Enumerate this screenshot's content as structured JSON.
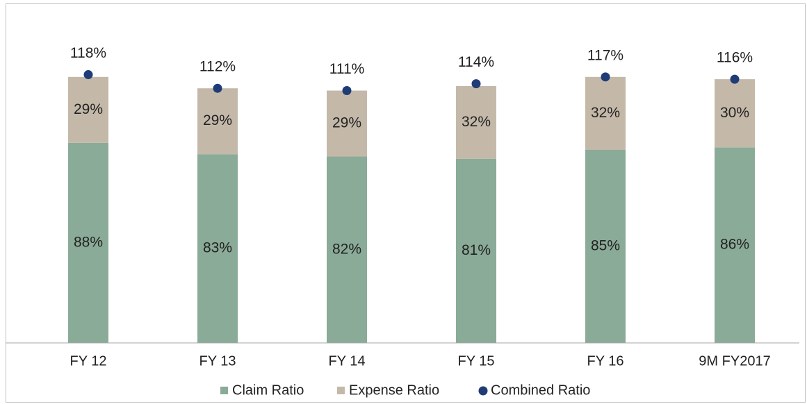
{
  "chart_data": {
    "type": "bar",
    "categories": [
      "FY 12",
      "FY 13",
      "FY 14",
      "FY 15",
      "FY 16",
      "9M FY2017"
    ],
    "stacked": true,
    "series": [
      {
        "name": "Claim Ratio",
        "color": "#8aab97",
        "values": [
          88,
          83,
          82,
          81,
          85,
          86
        ],
        "value_labels": [
          "88%",
          "83%",
          "82%",
          "81%",
          "85%",
          "86%"
        ]
      },
      {
        "name": "Expense Ratio",
        "color": "#c4b9a9",
        "values": [
          29,
          29,
          29,
          32,
          32,
          30
        ],
        "value_labels": [
          "29%",
          "29%",
          "29%",
          "32%",
          "32%",
          "30%"
        ]
      },
      {
        "name": "Combined Ratio",
        "color": "#1f3c77",
        "type": "scatter",
        "values": [
          118,
          112,
          111,
          114,
          117,
          116
        ],
        "value_labels": [
          "118%",
          "112%",
          "111%",
          "114%",
          "117%",
          "116%"
        ]
      }
    ]
  }
}
